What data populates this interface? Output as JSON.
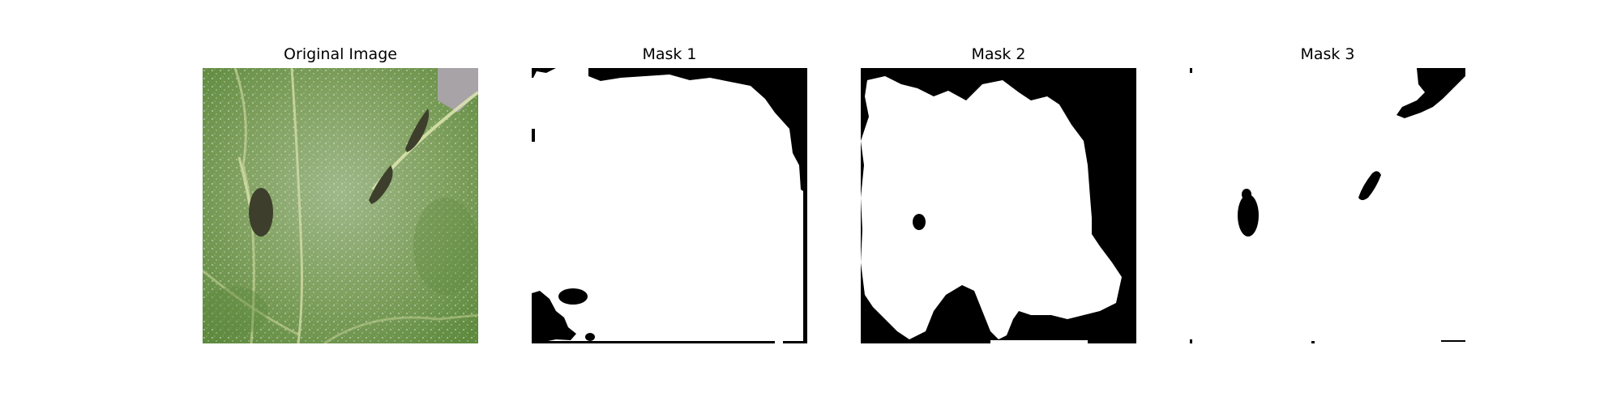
{
  "figure": {
    "panels": [
      {
        "title": "Original Image",
        "kind": "photo",
        "subject": "leaf-photo"
      },
      {
        "title": "Mask 1",
        "kind": "mask"
      },
      {
        "title": "Mask 2",
        "kind": "mask"
      },
      {
        "title": "Mask 3",
        "kind": "mask"
      }
    ]
  },
  "colors": {
    "mask_foreground": "#ffffff",
    "mask_background": "#000000",
    "leaf_green": "#6f9a4c",
    "leaf_dark": "#4d7a34",
    "leaf_spot": "#3a3a2a"
  }
}
